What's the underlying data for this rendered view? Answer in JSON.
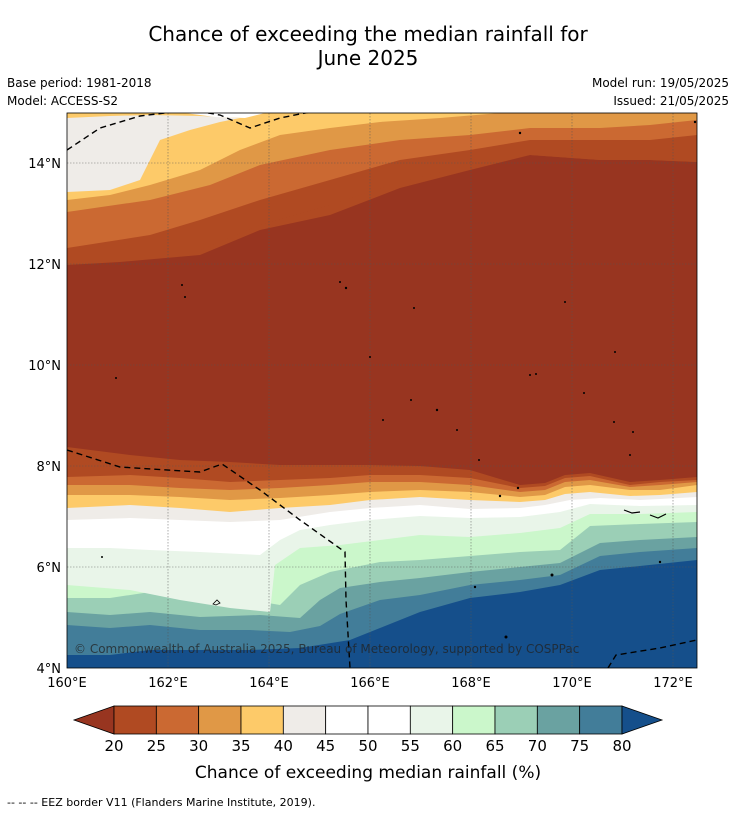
{
  "header": {
    "title_line1": "Chance of exceeding the median rainfall for",
    "title_line2": "June 2025",
    "base_period": "Base period: 1981-2018",
    "model": "Model: ACCESS-S2",
    "model_run": "Model run: 19/05/2025",
    "issued": "Issued: 21/05/2025"
  },
  "map": {
    "lat_labels": [
      "14°N",
      "12°N",
      "10°N",
      "8°N",
      "6°N",
      "4°N"
    ],
    "lon_labels": [
      "160°E",
      "162°E",
      "164°E",
      "166°E",
      "168°E",
      "170°E",
      "172°E"
    ],
    "copyright": "© Commonwealth of Australia 2025, Bureau of Meteorology, supported by COSPPac"
  },
  "colorbar": {
    "ticks": [
      "20",
      "25",
      "30",
      "35",
      "40",
      "45",
      "50",
      "55",
      "60",
      "65",
      "70",
      "75",
      "80"
    ],
    "label": "Chance of exceeding median rainfall (%)",
    "colors": [
      "#983520",
      "#b04a22",
      "#cb6932",
      "#e09846",
      "#fdca69",
      "#efece8",
      "#ffffff",
      "#ffffff",
      "#e9f5e9",
      "#cbf7cb",
      "#9bcfb6",
      "#6aa2a1",
      "#427d99",
      "#154f8b"
    ]
  },
  "footer": {
    "legend_text": "--  --  -- EEZ border V11 (Flanders Marine Institute, 2019)."
  }
}
